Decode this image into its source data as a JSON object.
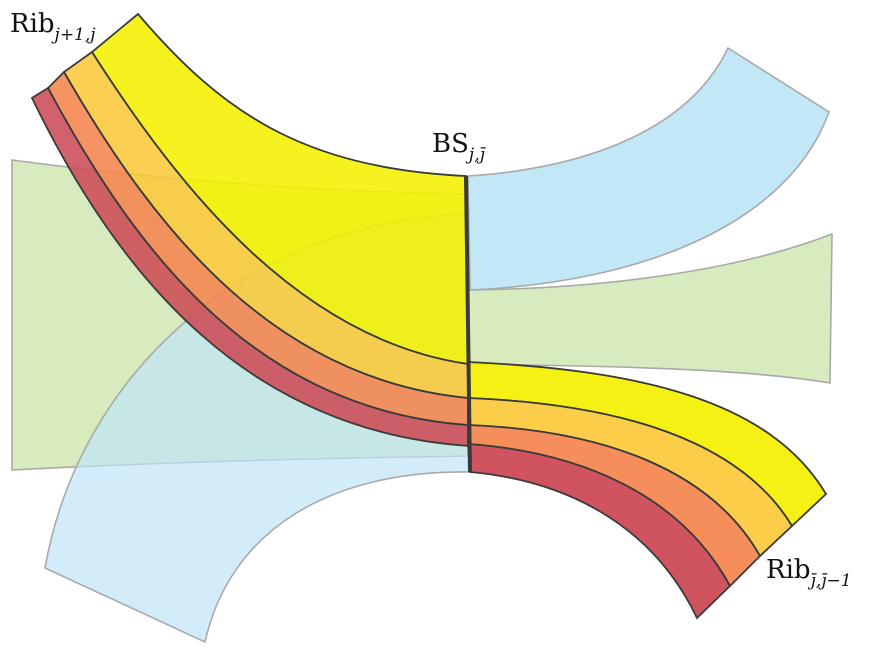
{
  "labels": {
    "top_left": {
      "main": "Rib",
      "sub": "j+1,j"
    },
    "center": {
      "main": "BS",
      "sub": "j,j̄"
    },
    "bottom_right": {
      "main": "Rib",
      "sub": "j̄,j̄−1"
    }
  },
  "colors": {
    "blue": "#bfe6f7",
    "green": "#c9e4a8",
    "yellow": "#f5f000",
    "amber": "#fbc93a",
    "orange": "#f5844d",
    "red": "#cd4b57",
    "edge_dark": "#3a3a3a",
    "edge_light": "#a9a9a9"
  }
}
